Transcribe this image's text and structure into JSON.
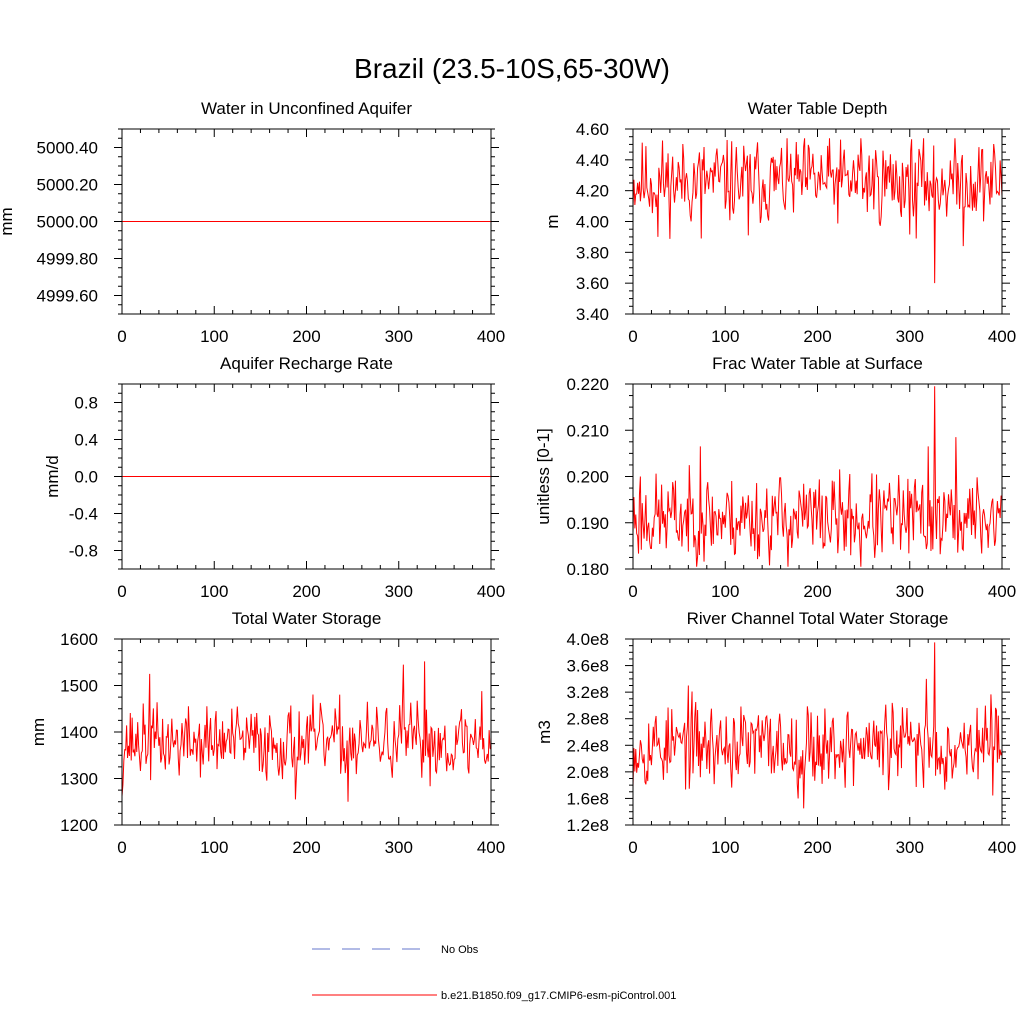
{
  "figure": {
    "title": "Brazil (23.5-10S,65-30W)"
  },
  "legend": {
    "obs_label": "No Obs",
    "obs_color": "#6677cc",
    "model_label": "b.e21.B1850.f09_g17.CMIP6-esm-piControl.001",
    "model_color": "#ff0000"
  },
  "chart_data": [
    {
      "type": "line",
      "title": "Water in Unconfined Aquifer",
      "xlabel": "",
      "ylabel": "mm",
      "xlim": [
        0,
        400
      ],
      "ylim": [
        4999.5,
        5000.5
      ],
      "xticks": [
        0,
        100,
        200,
        300,
        400
      ],
      "xtick_labels": [
        "0",
        "100",
        "200",
        "300",
        "400"
      ],
      "yticks": [
        4999.6,
        4999.8,
        5000.0,
        5000.2,
        5000.4
      ],
      "ytick_labels": [
        "4999.60",
        "4999.80",
        "5000.00",
        "5000.20",
        "5000.40"
      ],
      "series": [
        {
          "name": "b.e21.B1850.f09_g17.CMIP6-esm-piControl.001",
          "generator": "constant",
          "value": 5000.0,
          "n": 400
        }
      ]
    },
    {
      "type": "line",
      "title": "Water Table Depth",
      "xlabel": "",
      "ylabel": "m",
      "xlim": [
        0,
        400
      ],
      "ylim": [
        3.4,
        4.6
      ],
      "xticks": [
        0,
        100,
        200,
        300,
        400
      ],
      "xtick_labels": [
        "0",
        "100",
        "200",
        "300",
        "400"
      ],
      "yticks": [
        3.4,
        3.6,
        3.8,
        4.0,
        4.2,
        4.4,
        4.6
      ],
      "ytick_labels": [
        "3.40",
        "3.60",
        "3.80",
        "4.00",
        "4.20",
        "4.40",
        "4.60"
      ],
      "series": [
        {
          "name": "b.e21.B1850.f09_g17.CMIP6-esm-piControl.001",
          "generator": "noise",
          "mean": 4.26,
          "amp": 0.13,
          "min": 3.88,
          "max": 4.54,
          "seed": 11,
          "n": 400,
          "spikes": [
            [
              327,
              3.6
            ],
            [
              307,
              3.89
            ],
            [
              358,
              3.84
            ],
            [
              74,
              3.89
            ],
            [
              27,
              3.9
            ],
            [
              125,
              3.91
            ],
            [
              247,
              4.54
            ]
          ]
        }
      ]
    },
    {
      "type": "line",
      "title": "Aquifer Recharge Rate",
      "xlabel": "",
      "ylabel": "mm/d",
      "xlim": [
        0,
        400
      ],
      "ylim": [
        -1.0,
        1.0
      ],
      "xticks": [
        0,
        100,
        200,
        300,
        400
      ],
      "xtick_labels": [
        "0",
        "100",
        "200",
        "300",
        "400"
      ],
      "yticks": [
        -0.8,
        -0.4,
        0.0,
        0.4,
        0.8
      ],
      "ytick_labels": [
        "-0.8",
        "-0.4",
        "0.0",
        "0.4",
        "0.8"
      ],
      "series": [
        {
          "name": "b.e21.B1850.f09_g17.CMIP6-esm-piControl.001",
          "generator": "constant",
          "value": 0.0,
          "n": 400
        }
      ]
    },
    {
      "type": "line",
      "title": "Frac Water Table at Surface",
      "xlabel": "",
      "ylabel": "unitless [0-1]",
      "xlim": [
        0,
        400
      ],
      "ylim": [
        0.18,
        0.22
      ],
      "xticks": [
        0,
        100,
        200,
        300,
        400
      ],
      "xtick_labels": [
        "0",
        "100",
        "200",
        "300",
        "400"
      ],
      "yticks": [
        0.18,
        0.19,
        0.2,
        0.21,
        0.22
      ],
      "ytick_labels": [
        "0.180",
        "0.190",
        "0.200",
        "0.210",
        "0.220"
      ],
      "series": [
        {
          "name": "b.e21.B1850.f09_g17.CMIP6-esm-piControl.001",
          "generator": "noise",
          "mean": 0.191,
          "amp": 0.0045,
          "min": 0.1805,
          "max": 0.2065,
          "seed": 23,
          "n": 400,
          "spikes": [
            [
              327,
              0.2195
            ],
            [
              320,
              0.2065
            ],
            [
              350,
              0.2085
            ],
            [
              8,
              0.2
            ],
            [
              73,
              0.2065
            ],
            [
              247,
              0.1805
            ]
          ]
        }
      ]
    },
    {
      "type": "line",
      "title": "Total Water Storage",
      "xlabel": "",
      "ylabel": "mm",
      "xlim": [
        0,
        400
      ],
      "ylim": [
        1200,
        1600
      ],
      "xticks": [
        0,
        100,
        200,
        300,
        400
      ],
      "xtick_labels": [
        "0",
        "100",
        "200",
        "300",
        "400"
      ],
      "yticks": [
        1200,
        1300,
        1400,
        1500,
        1600
      ],
      "ytick_labels": [
        "1200",
        "1300",
        "1400",
        "1500",
        "1600"
      ],
      "series": [
        {
          "name": "b.e21.B1850.f09_g17.CMIP6-esm-piControl.001",
          "generator": "noise",
          "mean": 1378,
          "amp": 38,
          "min": 1262,
          "max": 1500,
          "seed": 37,
          "n": 400,
          "spikes": [
            [
              0,
              1262
            ],
            [
              30,
              1525
            ],
            [
              305,
              1545
            ],
            [
              328,
              1552
            ],
            [
              188,
              1255
            ],
            [
              245,
              1250
            ],
            [
              390,
              1488
            ]
          ]
        }
      ]
    },
    {
      "type": "line",
      "title": "River Channel Total Water Storage",
      "xlabel": "",
      "ylabel": "m3",
      "xlim": [
        0,
        400
      ],
      "ylim": [
        120000000,
        400000000
      ],
      "xticks": [
        0,
        100,
        200,
        300,
        400
      ],
      "xtick_labels": [
        "0",
        "100",
        "200",
        "300",
        "400"
      ],
      "yticks": [
        120000000,
        160000000,
        200000000,
        240000000,
        280000000,
        320000000,
        360000000,
        400000000
      ],
      "ytick_labels": [
        "1.2e8",
        "1.6e8",
        "2.0e8",
        "2.4e8",
        "2.8e8",
        "3.2e8",
        "3.6e8",
        "4.0e8"
      ],
      "series": [
        {
          "name": "b.e21.B1850.f09_g17.CMIP6-esm-piControl.001",
          "generator": "noise",
          "mean": 240000000,
          "amp": 30000000,
          "min": 160000000,
          "max": 335000000,
          "seed": 53,
          "n": 400,
          "spikes": [
            [
              327,
              395000000
            ],
            [
              185,
              145000000
            ],
            [
              318,
              340000000
            ],
            [
              60,
              330000000
            ]
          ]
        }
      ]
    }
  ]
}
